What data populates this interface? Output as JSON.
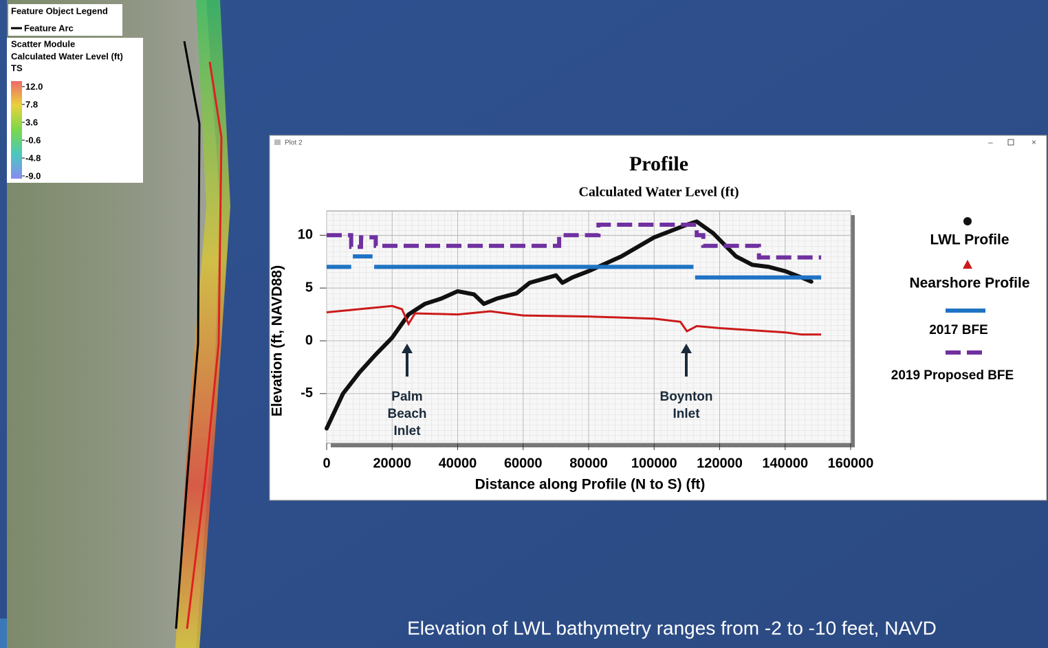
{
  "map_legend": {
    "title": "Feature Object Legend",
    "arc_label": "Feature Arc",
    "module": "Scatter Module",
    "dataset": "Calculated Water Level (ft)",
    "timestep": "TS",
    "scale_labels": [
      "12.0",
      "7.8",
      "3.6",
      "-0.6",
      "-4.8",
      "-9.0"
    ]
  },
  "window": {
    "title": "Plot 2"
  },
  "caption": "Elevation of LWL bathymetry ranges from -2 to -10 feet, NAVD",
  "chart_data": {
    "type": "line",
    "title": "Profile",
    "subtitle": "Calculated Water Level (ft)",
    "x_label": "Distance along Profile (N to S) (ft)",
    "y_label": "Elevation (ft, NAVD88)",
    "xlim": [
      0,
      160000
    ],
    "xticks": [
      0,
      20000,
      40000,
      60000,
      80000,
      100000,
      120000,
      140000,
      160000
    ],
    "ylim": [
      -9.7,
      12.3
    ],
    "yticks": [
      -5,
      0,
      5,
      10
    ],
    "grid": true,
    "annotations": [
      [
        "Palm",
        "Beach",
        "Inlet"
      ],
      [
        "Boynton",
        "Inlet"
      ]
    ],
    "series": [
      {
        "name": "LWL Profile",
        "color": "#111111",
        "style": "dots",
        "x": [
          0,
          5000,
          10000,
          15000,
          20000,
          25000,
          30000,
          35000,
          40000,
          45000,
          48000,
          52000,
          58000,
          62000,
          70000,
          72000,
          75000,
          80000,
          90000,
          100000,
          110000,
          113000,
          118000,
          125000,
          130000,
          135000,
          140000,
          145000,
          148000
        ],
        "values": [
          -8.3,
          -5,
          -3,
          -1.3,
          0.3,
          2.5,
          3.5,
          4,
          4.7,
          4.4,
          3.5,
          4,
          4.5,
          5.5,
          6.2,
          5.5,
          6,
          6.6,
          8,
          9.8,
          11,
          11.3,
          10.2,
          8,
          7.2,
          7,
          6.6,
          6,
          5.6
        ]
      },
      {
        "name": "Nearshore Profile",
        "color": "#cc1a1a",
        "style": "triangles",
        "x": [
          0,
          10000,
          20000,
          23000,
          25000,
          27000,
          40000,
          50000,
          60000,
          80000,
          100000,
          108000,
          110000,
          113000,
          120000,
          140000,
          145000,
          151000
        ],
        "values": [
          2.7,
          3,
          3.3,
          3,
          1.6,
          2.6,
          2.5,
          2.8,
          2.4,
          2.3,
          2.1,
          1.8,
          0.9,
          1.4,
          1.2,
          0.8,
          0.6,
          0.6
        ]
      },
      {
        "name": "2017 BFE",
        "color": "#1f73c4",
        "style": "solid",
        "x": [
          0,
          7500,
          7600,
          8000,
          14000,
          14200,
          14500,
          112000,
          112200,
          112500,
          151000
        ],
        "values": [
          7,
          7,
          null,
          8,
          8,
          null,
          7,
          7,
          null,
          6,
          6
        ]
      },
      {
        "name": "2019 Proposed BFE",
        "color": "#7030a0",
        "style": "dashed",
        "x": [
          0,
          7500,
          7500,
          10500,
          10500,
          15000,
          15000,
          71000,
          71000,
          83000,
          83000,
          113000,
          113000,
          115000,
          115000,
          132000,
          132000,
          151000
        ],
        "values": [
          10,
          10,
          8.9,
          8.9,
          9.8,
          9.8,
          9,
          9,
          10,
          10,
          11,
          11,
          10,
          10,
          9,
          9,
          7.9,
          7.9
        ]
      }
    ]
  }
}
